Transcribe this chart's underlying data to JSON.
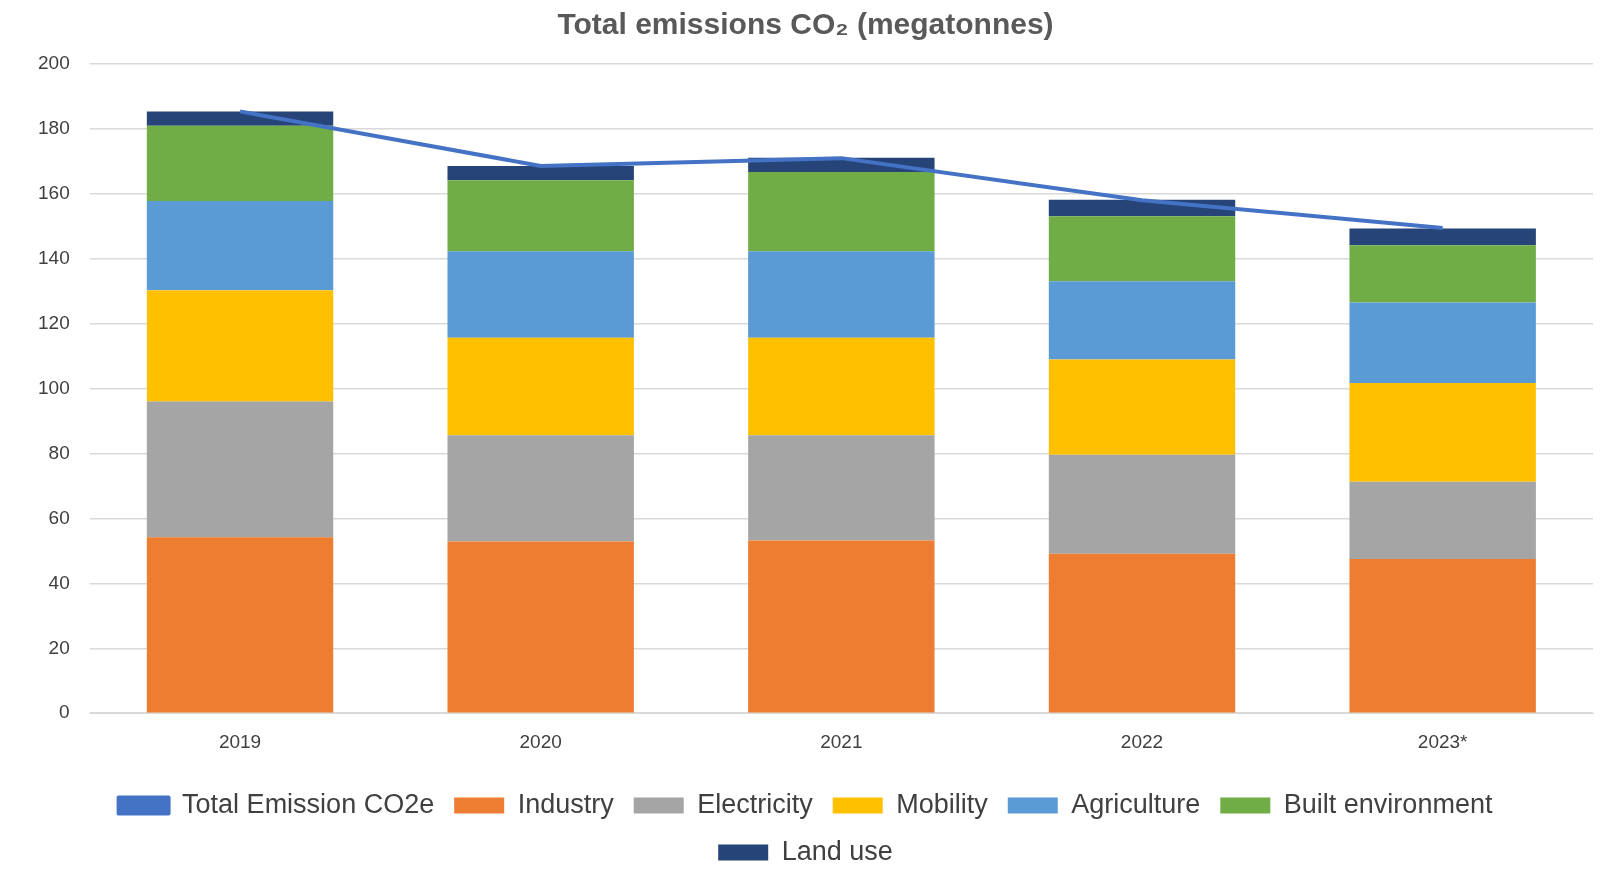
{
  "chart_data": {
    "type": "bar",
    "title": "Total emissions CO₂ (megatonnes)",
    "categories": [
      "2019",
      "2020",
      "2021",
      "2022",
      "2023*"
    ],
    "stacked": true,
    "ylim": [
      0,
      200
    ],
    "yticks": [
      0,
      20,
      40,
      60,
      80,
      100,
      120,
      140,
      160,
      180,
      200
    ],
    "grid": "y",
    "legend": "bottom",
    "marker": "none",
    "series": [
      {
        "name": "Industry",
        "color": "#ed7d31",
        "values": [
          54.2,
          52.9,
          53.2,
          49.1,
          47.5
        ]
      },
      {
        "name": "Electricity",
        "color": "#a5a5a5",
        "values": [
          41.8,
          32.7,
          32.4,
          30.5,
          23.8
        ]
      },
      {
        "name": "Mobility",
        "color": "#ffc000",
        "values": [
          34.3,
          30.1,
          30.1,
          29.4,
          30.4
        ]
      },
      {
        "name": "Agriculture",
        "color": "#5b9bd5",
        "values": [
          27.5,
          26.6,
          26.6,
          24.1,
          24.8
        ]
      },
      {
        "name": "Built environment",
        "color": "#70ad47",
        "values": [
          23.2,
          21.9,
          24.4,
          20.0,
          17.7
        ]
      },
      {
        "name": "Land use",
        "color": "#264478",
        "values": [
          4.4,
          4.4,
          4.4,
          5.1,
          5.1
        ]
      },
      {
        "type": "line",
        "name": "Total Emission CO2e",
        "color": "#4472c4",
        "values": [
          185.4,
          168.6,
          171.0,
          158.0,
          149.5
        ]
      }
    ]
  }
}
